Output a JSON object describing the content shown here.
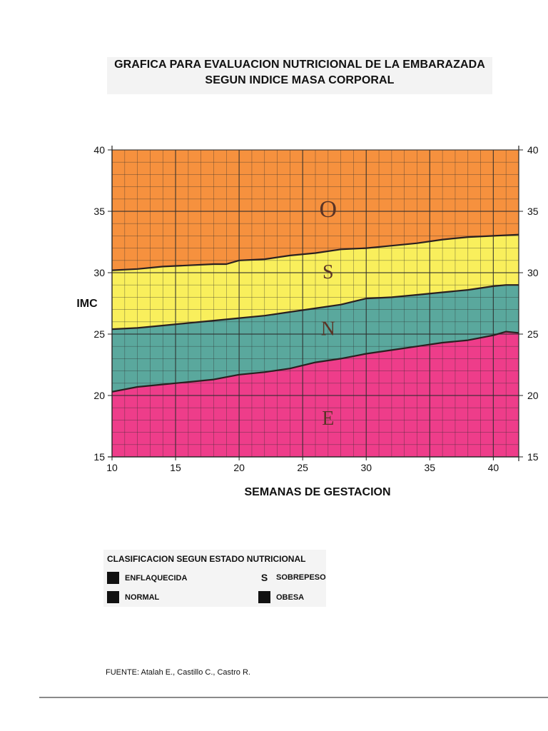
{
  "title": {
    "line1": "GRAFICA PARA EVALUACION NUTRICIONAL DE LA EMBARAZADA",
    "line2": "SEGUN INDICE MASA CORPORAL"
  },
  "chart_data": {
    "type": "area",
    "xlabel": "SEMANAS DE GESTACION",
    "ylabel": "IMC",
    "xlim": [
      10,
      42
    ],
    "ylim": [
      15,
      40
    ],
    "x_ticks": [
      10,
      15,
      20,
      25,
      30,
      35,
      40
    ],
    "y_ticks": [
      15,
      20,
      25,
      30,
      35,
      40
    ],
    "grid": true,
    "boundaries": [
      {
        "x": [
          10,
          12,
          14,
          16,
          18,
          20,
          22,
          24,
          26,
          28,
          30,
          32,
          34,
          36,
          38,
          40,
          41,
          42
        ],
        "y": [
          20.3,
          20.7,
          20.9,
          21.1,
          21.3,
          21.7,
          21.9,
          22.2,
          22.7,
          23.0,
          23.4,
          23.7,
          24.0,
          24.3,
          24.5,
          24.9,
          25.2,
          25.1
        ]
      },
      {
        "x": [
          10,
          12,
          14,
          16,
          18,
          20,
          22,
          24,
          26,
          28,
          30,
          32,
          34,
          36,
          38,
          40,
          41,
          42
        ],
        "y": [
          25.4,
          25.5,
          25.7,
          25.9,
          26.1,
          26.3,
          26.5,
          26.8,
          27.1,
          27.4,
          27.9,
          28.0,
          28.2,
          28.4,
          28.6,
          28.9,
          29.0,
          29.0
        ]
      },
      {
        "x": [
          10,
          12,
          14,
          16,
          18,
          19,
          20,
          22,
          24,
          26,
          28,
          30,
          32,
          34,
          36,
          38,
          40,
          42
        ],
        "y": [
          30.2,
          30.3,
          30.5,
          30.6,
          30.7,
          30.7,
          31.0,
          31.1,
          31.4,
          31.6,
          31.9,
          32.0,
          32.2,
          32.4,
          32.7,
          32.9,
          33.0,
          33.1
        ]
      }
    ],
    "zones": [
      {
        "letter": "E",
        "name": "ENFLAQUECIDA",
        "color": "#ee3d8a",
        "label_at": [
          27,
          18
        ]
      },
      {
        "letter": "N",
        "name": "NORMAL",
        "color": "#5aa89d",
        "label_at": [
          27,
          25.3
        ]
      },
      {
        "letter": "S",
        "name": "SOBREPESO",
        "color": "#f9ef5c",
        "label_at": [
          27,
          29.9
        ]
      },
      {
        "letter": "O",
        "name": "OBESA",
        "color": "#f6913e",
        "label_at": [
          27,
          35
        ]
      }
    ]
  },
  "legend": {
    "heading": "CLASIFICACION SEGUN ESTADO NUTRICIONAL",
    "items": [
      {
        "label": "ENFLAQUECIDA",
        "marker": ""
      },
      {
        "label": "NORMAL",
        "marker": ""
      },
      {
        "label": "SOBREPESO",
        "marker": "S"
      },
      {
        "label": "OBESA",
        "marker": ""
      }
    ]
  },
  "source": "FUENTE: Atalah E., Castillo C., Castro R."
}
